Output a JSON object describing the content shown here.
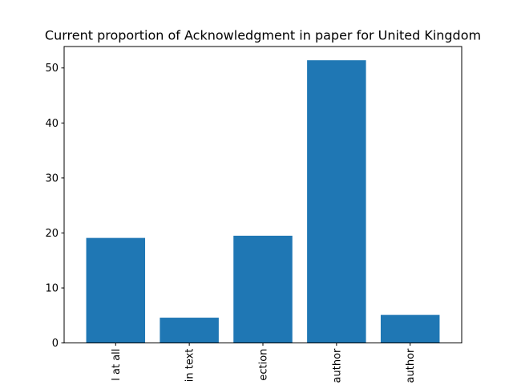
{
  "chart_data": {
    "type": "bar",
    "title": "Current proportion of Acknowledgment in paper for United Kingdom",
    "xlabel": "",
    "ylabel": "",
    "categories": [
      "l at all",
      "n in text",
      "ection",
      "l author",
      "author"
    ],
    "values": [
      19.1,
      4.6,
      19.5,
      51.4,
      5.1
    ],
    "ylim": [
      0,
      53.9
    ],
    "yticks": [
      0,
      10,
      20,
      30,
      40,
      50
    ],
    "grid": false,
    "bar_color": "#1f77b4"
  }
}
